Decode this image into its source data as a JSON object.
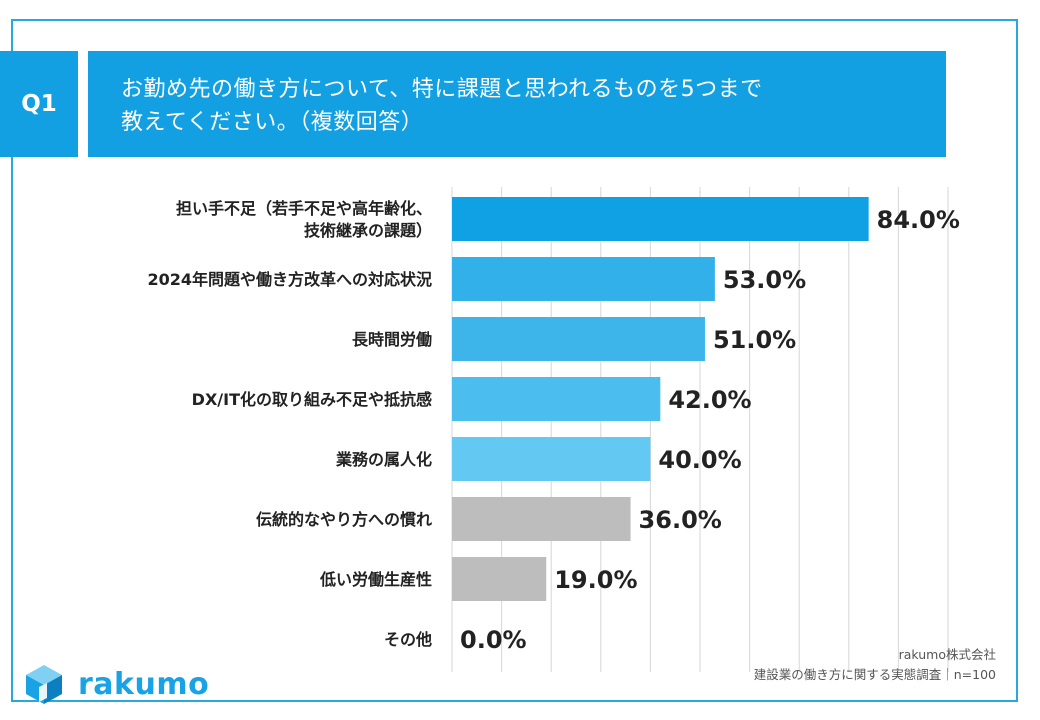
{
  "question": {
    "badge": "Q1",
    "line1": "お勤め先の働き方について、特に課題と思われるものを5つまで",
    "line2": "教えてください。（複数回答）"
  },
  "chart_data": {
    "type": "bar",
    "orientation": "horizontal",
    "categories": [
      [
        "担い手不足（若手不足や高年齢化、",
        "技術継承の課題）"
      ],
      [
        "2024年問題や働き方改革への対応状況"
      ],
      [
        "長時間労働"
      ],
      [
        "DX/IT化の取り組み不足や抵抗感"
      ],
      [
        "業務の属人化"
      ],
      [
        "伝統的なやり方への慣れ"
      ],
      [
        "低い労働生産性"
      ],
      [
        "その他"
      ]
    ],
    "values": [
      84.0,
      53.0,
      51.0,
      42.0,
      40.0,
      36.0,
      19.0,
      0.0
    ],
    "value_labels": [
      "84.0%",
      "53.0%",
      "51.0%",
      "42.0%",
      "40.0%",
      "36.0%",
      "19.0%",
      "0.0%"
    ],
    "bar_colors": [
      "#0fa1e4",
      "#32b0ea",
      "#3db5eb",
      "#4bbdee",
      "#63c8f2",
      "#bdbdbd",
      "#bdbdbd",
      "#bdbdbd"
    ],
    "xlim": [
      0,
      100
    ],
    "gridlines": true
  },
  "source": {
    "line1": "rakumo株式会社",
    "line2": "建設業の働き方に関する実態調査｜n=100"
  },
  "brand": {
    "name": "rakumo"
  }
}
